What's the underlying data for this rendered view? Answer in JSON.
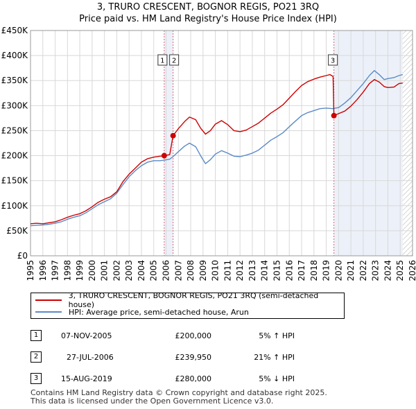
{
  "title": {
    "line1": "3, TRURO CRESCENT, BOGNOR REGIS, PO21 3RQ",
    "line2": "Price paid vs. HM Land Registry's House Price Index (HPI)"
  },
  "colors": {
    "price_line": "#cc0000",
    "hpi_line": "#5a8ac6",
    "vline": "#e06070",
    "shade": "#dde6f4",
    "future_shade": "#e8e8e8",
    "grid": "#d8d8d8"
  },
  "chart_data": {
    "type": "line",
    "xlim": [
      1995,
      2026
    ],
    "ylim": [
      0,
      450000
    ],
    "x_ticks": [
      1995,
      1996,
      1997,
      1998,
      1999,
      2000,
      2001,
      2002,
      2003,
      2004,
      2005,
      2006,
      2007,
      2008,
      2009,
      2010,
      2011,
      2012,
      2013,
      2014,
      2015,
      2016,
      2017,
      2018,
      2019,
      2020,
      2021,
      2022,
      2023,
      2024,
      2025,
      2026
    ],
    "y_ticks": [
      0,
      50000,
      100000,
      150000,
      200000,
      250000,
      300000,
      350000,
      400000,
      450000
    ],
    "y_tick_labels": [
      "£0",
      "£50K",
      "£100K",
      "£150K",
      "£200K",
      "£250K",
      "£300K",
      "£350K",
      "£400K",
      "£450K"
    ],
    "series": [
      {
        "name": "3, TRURO CRESCENT, BOGNOR REGIS, PO21 3RQ (semi-detached house)",
        "color": "#cc0000",
        "points": [
          [
            1995.0,
            64000
          ],
          [
            1995.5,
            65000
          ],
          [
            1996.0,
            64000
          ],
          [
            1996.5,
            66000
          ],
          [
            1997.0,
            68000
          ],
          [
            1997.5,
            72000
          ],
          [
            1998.0,
            77000
          ],
          [
            1998.5,
            81000
          ],
          [
            1999.0,
            84000
          ],
          [
            1999.5,
            90000
          ],
          [
            2000.0,
            98000
          ],
          [
            2000.5,
            107000
          ],
          [
            2001.0,
            113000
          ],
          [
            2001.5,
            118000
          ],
          [
            2002.0,
            128000
          ],
          [
            2002.5,
            148000
          ],
          [
            2003.0,
            163000
          ],
          [
            2003.5,
            175000
          ],
          [
            2004.0,
            187000
          ],
          [
            2004.5,
            194000
          ],
          [
            2005.0,
            197000
          ],
          [
            2005.5,
            199000
          ],
          [
            2005.85,
            200000
          ],
          [
            2006.3,
            202000
          ],
          [
            2006.57,
            239950
          ],
          [
            2007.0,
            254000
          ],
          [
            2007.5,
            268000
          ],
          [
            2007.9,
            277000
          ],
          [
            2008.4,
            272000
          ],
          [
            2008.8,
            255000
          ],
          [
            2009.2,
            243000
          ],
          [
            2009.6,
            250000
          ],
          [
            2010.0,
            263000
          ],
          [
            2010.5,
            270000
          ],
          [
            2011.0,
            262000
          ],
          [
            2011.5,
            250000
          ],
          [
            2012.0,
            248000
          ],
          [
            2012.5,
            251000
          ],
          [
            2013.0,
            258000
          ],
          [
            2013.5,
            265000
          ],
          [
            2014.0,
            275000
          ],
          [
            2014.5,
            285000
          ],
          [
            2015.0,
            293000
          ],
          [
            2015.5,
            302000
          ],
          [
            2016.0,
            315000
          ],
          [
            2016.5,
            328000
          ],
          [
            2017.0,
            340000
          ],
          [
            2017.5,
            348000
          ],
          [
            2018.0,
            353000
          ],
          [
            2018.5,
            357000
          ],
          [
            2019.0,
            360000
          ],
          [
            2019.3,
            362000
          ],
          [
            2019.55,
            358000
          ],
          [
            2019.62,
            280000
          ],
          [
            2020.0,
            284000
          ],
          [
            2020.5,
            289000
          ],
          [
            2021.0,
            299000
          ],
          [
            2021.5,
            312000
          ],
          [
            2022.0,
            327000
          ],
          [
            2022.5,
            344000
          ],
          [
            2022.9,
            352000
          ],
          [
            2023.3,
            347000
          ],
          [
            2023.7,
            338000
          ],
          [
            2024.0,
            336000
          ],
          [
            2024.5,
            337000
          ],
          [
            2024.9,
            344000
          ],
          [
            2025.2,
            345000
          ]
        ]
      },
      {
        "name": "HPI: Average price, semi-detached house, Arun",
        "color": "#5a8ac6",
        "points": [
          [
            1995.0,
            60000
          ],
          [
            1995.5,
            61000
          ],
          [
            1996.0,
            61500
          ],
          [
            1996.5,
            63000
          ],
          [
            1997.0,
            65000
          ],
          [
            1997.5,
            68000
          ],
          [
            1998.0,
            73000
          ],
          [
            1998.5,
            77000
          ],
          [
            1999.0,
            80000
          ],
          [
            1999.5,
            86000
          ],
          [
            2000.0,
            94000
          ],
          [
            2000.5,
            102000
          ],
          [
            2001.0,
            108000
          ],
          [
            2001.5,
            114000
          ],
          [
            2002.0,
            125000
          ],
          [
            2002.5,
            142000
          ],
          [
            2003.0,
            158000
          ],
          [
            2003.5,
            170000
          ],
          [
            2004.0,
            180000
          ],
          [
            2004.5,
            187000
          ],
          [
            2005.0,
            190000
          ],
          [
            2005.5,
            190000
          ],
          [
            2005.85,
            191000
          ],
          [
            2006.3,
            193000
          ],
          [
            2006.57,
            198000
          ],
          [
            2007.0,
            208000
          ],
          [
            2007.5,
            219000
          ],
          [
            2007.9,
            225000
          ],
          [
            2008.4,
            218000
          ],
          [
            2008.8,
            200000
          ],
          [
            2009.2,
            184000
          ],
          [
            2009.6,
            192000
          ],
          [
            2010.0,
            203000
          ],
          [
            2010.5,
            210000
          ],
          [
            2011.0,
            205000
          ],
          [
            2011.5,
            199000
          ],
          [
            2012.0,
            198000
          ],
          [
            2012.5,
            201000
          ],
          [
            2013.0,
            205000
          ],
          [
            2013.5,
            211000
          ],
          [
            2014.0,
            221000
          ],
          [
            2014.5,
            231000
          ],
          [
            2015.0,
            238000
          ],
          [
            2015.5,
            246000
          ],
          [
            2016.0,
            258000
          ],
          [
            2016.5,
            269000
          ],
          [
            2017.0,
            280000
          ],
          [
            2017.5,
            286000
          ],
          [
            2018.0,
            290000
          ],
          [
            2018.5,
            294000
          ],
          [
            2019.0,
            295000
          ],
          [
            2019.5,
            294000
          ],
          [
            2020.0,
            296000
          ],
          [
            2020.5,
            305000
          ],
          [
            2021.0,
            316000
          ],
          [
            2021.5,
            330000
          ],
          [
            2022.0,
            344000
          ],
          [
            2022.5,
            360000
          ],
          [
            2022.9,
            370000
          ],
          [
            2023.3,
            362000
          ],
          [
            2023.7,
            352000
          ],
          [
            2024.0,
            354000
          ],
          [
            2024.5,
            356000
          ],
          [
            2024.9,
            360000
          ],
          [
            2025.2,
            362000
          ]
        ]
      }
    ],
    "sale_markers": [
      {
        "label": "1",
        "x": 2005.85,
        "y": 200000
      },
      {
        "label": "2",
        "x": 2006.57,
        "y": 239950
      },
      {
        "label": "3",
        "x": 2019.62,
        "y": 280000
      }
    ],
    "shaded_ranges": [
      [
        2005.85,
        2006.57
      ],
      [
        2019.62,
        2025.2
      ]
    ],
    "future_start": 2025.2
  },
  "legend": {
    "price_label": "3, TRURO CRESCENT, BOGNOR REGIS, PO21 3RQ (semi-detached house)",
    "hpi_label": "HPI: Average price, semi-detached house, Arun"
  },
  "sales": [
    {
      "num": "1",
      "date": "07-NOV-2005",
      "price": "£200,000",
      "hpi": "5% ↑ HPI"
    },
    {
      "num": "2",
      "date": "27-JUL-2006",
      "price": "£239,950",
      "hpi": "21% ↑ HPI"
    },
    {
      "num": "3",
      "date": "15-AUG-2019",
      "price": "£280,000",
      "hpi": "5% ↓ HPI"
    }
  ],
  "footer": {
    "line1": "Contains HM Land Registry data © Crown copyright and database right 2025.",
    "line2": "This data is licensed under the Open Government Licence v3.0."
  }
}
